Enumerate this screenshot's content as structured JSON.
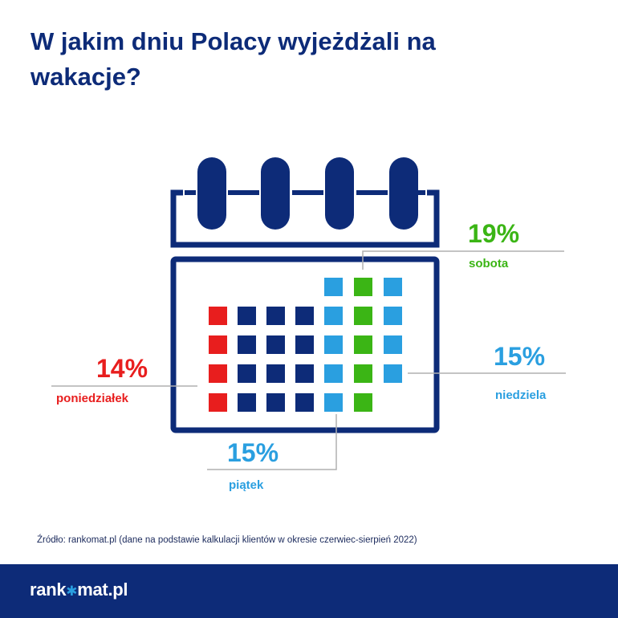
{
  "title": "W jakim dniu Polacy wyjeżdżali na wakacje?",
  "colors": {
    "navy": "#0d2b78",
    "red": "#e81e1e",
    "green": "#3bb515",
    "blue": "#2a9fe0",
    "leader": "#b0b0b0"
  },
  "chart_data": {
    "type": "waffle",
    "title": "W jakim dniu Polacy wyjeżdżali na wakacje?",
    "unit": "%",
    "categories": [
      "poniedziałek",
      "piątek",
      "sobota",
      "niedziela"
    ],
    "values": [
      14,
      15,
      19,
      15
    ],
    "labels": [
      "14%",
      "15%",
      "19%",
      "15%"
    ],
    "series_colors": [
      "#e81e1e",
      "#2a9fe0",
      "#3bb515",
      "#2a9fe0"
    ]
  },
  "source": "Źródło: rankomat.pl (dane na podstawie kalkulacji klientów w okresie czerwiec-sierpień 2022)",
  "logo": {
    "left": "rank",
    "star": "✱",
    "right": "mat.pl"
  }
}
